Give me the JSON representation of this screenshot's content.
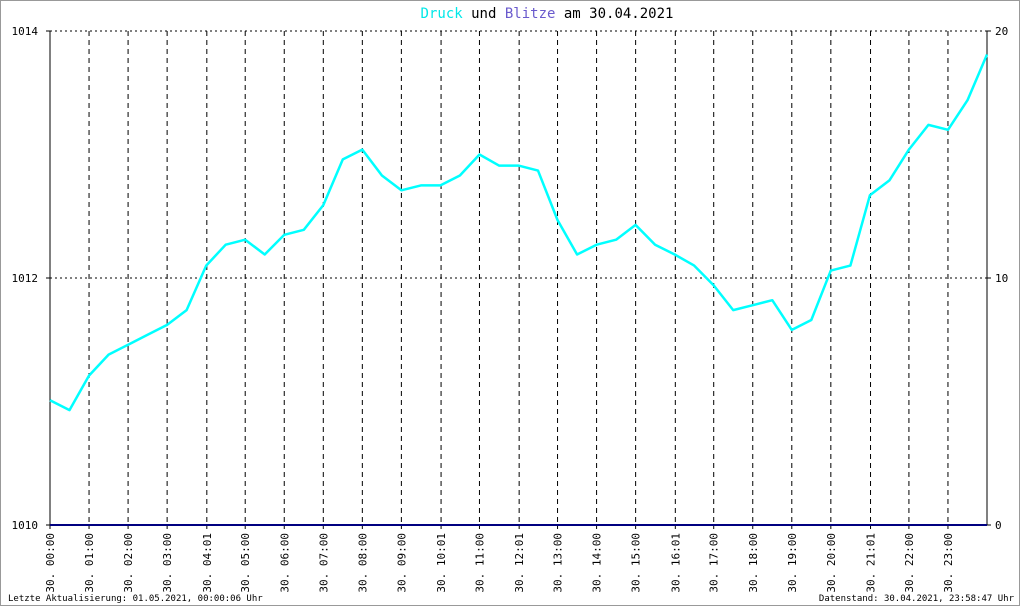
{
  "chart_data": {
    "type": "line",
    "title_segments": [
      "Druck",
      "und",
      "Blitze",
      "am 30.04.2021"
    ],
    "title_colors": [
      "#00e8e8",
      "#000000",
      "#6a5acd",
      "#000000"
    ],
    "xlim": [
      0,
      24
    ],
    "xticks": [
      {
        "value": 0,
        "label": "30. 00:00"
      },
      {
        "value": 1,
        "label": "30. 01:00"
      },
      {
        "value": 2,
        "label": "30. 02:00"
      },
      {
        "value": 3,
        "label": "30. 03:00"
      },
      {
        "value": 4.0167,
        "label": "30. 04:01"
      },
      {
        "value": 5,
        "label": "30. 05:00"
      },
      {
        "value": 6,
        "label": "30. 06:00"
      },
      {
        "value": 7,
        "label": "30. 07:00"
      },
      {
        "value": 8,
        "label": "30. 08:00"
      },
      {
        "value": 9,
        "label": "30. 09:00"
      },
      {
        "value": 10.0167,
        "label": "30. 10:01"
      },
      {
        "value": 11,
        "label": "30. 11:00"
      },
      {
        "value": 12.0167,
        "label": "30. 12:01"
      },
      {
        "value": 13,
        "label": "30. 13:00"
      },
      {
        "value": 14,
        "label": "30. 14:00"
      },
      {
        "value": 15,
        "label": "30. 15:00"
      },
      {
        "value": 16.0167,
        "label": "30. 16:01"
      },
      {
        "value": 17,
        "label": "30. 17:00"
      },
      {
        "value": 18,
        "label": "30. 18:00"
      },
      {
        "value": 19,
        "label": "30. 19:00"
      },
      {
        "value": 20,
        "label": "30. 20:00"
      },
      {
        "value": 21.0167,
        "label": "30. 21:01"
      },
      {
        "value": 22,
        "label": "30. 22:00"
      },
      {
        "value": 23,
        "label": "30. 23:00"
      }
    ],
    "ylim": [
      1010,
      1014
    ],
    "yticks": [
      1010,
      1012,
      1014
    ],
    "y2lim": [
      0,
      20
    ],
    "y2ticks": [
      0,
      10,
      20
    ],
    "grid": true,
    "series": [
      {
        "color": "#00ffff",
        "x": [
          0,
          0.5,
          1,
          1.5,
          2,
          2.5,
          3,
          3.5,
          4,
          4.5,
          5,
          5.5,
          6,
          6.5,
          7,
          7.5,
          8,
          8.5,
          9,
          9.5,
          10,
          10.5,
          11,
          11.5,
          12,
          12.5,
          13,
          13.5,
          14,
          14.5,
          15,
          15.5,
          16,
          16.5,
          17,
          17.5,
          18,
          18.5,
          19,
          19.5,
          20,
          20.5,
          21,
          21.5,
          22,
          22.5,
          23,
          23.5,
          24
        ],
        "values": [
          1011.01,
          1010.93,
          1011.21,
          1011.38,
          1011.46,
          1011.54,
          1011.62,
          1011.74,
          1012.1,
          1012.27,
          1012.31,
          1012.19,
          1012.35,
          1012.39,
          1012.59,
          1012.96,
          1013.04,
          1012.83,
          1012.71,
          1012.75,
          1012.75,
          1012.83,
          1013.0,
          1012.91,
          1012.91,
          1012.87,
          1012.47,
          1012.19,
          1012.27,
          1012.31,
          1012.43,
          1012.27,
          1012.19,
          1012.1,
          1011.94,
          1011.74,
          1011.78,
          1011.82,
          1011.58,
          1011.66,
          1012.06,
          1012.1,
          1012.67,
          1012.79,
          1013.04,
          1013.24,
          1013.2,
          1013.44,
          1013.81
        ]
      },
      {
        "color": "#000080",
        "axis": "y2",
        "x": [
          0,
          24
        ],
        "values": [
          0,
          0
        ]
      }
    ],
    "footer_left": "Letzte Aktualisierung: 01.05.2021, 00:00:06 Uhr",
    "footer_right": "Datenstand: 30.04.2021, 23:58:47 Uhr"
  }
}
